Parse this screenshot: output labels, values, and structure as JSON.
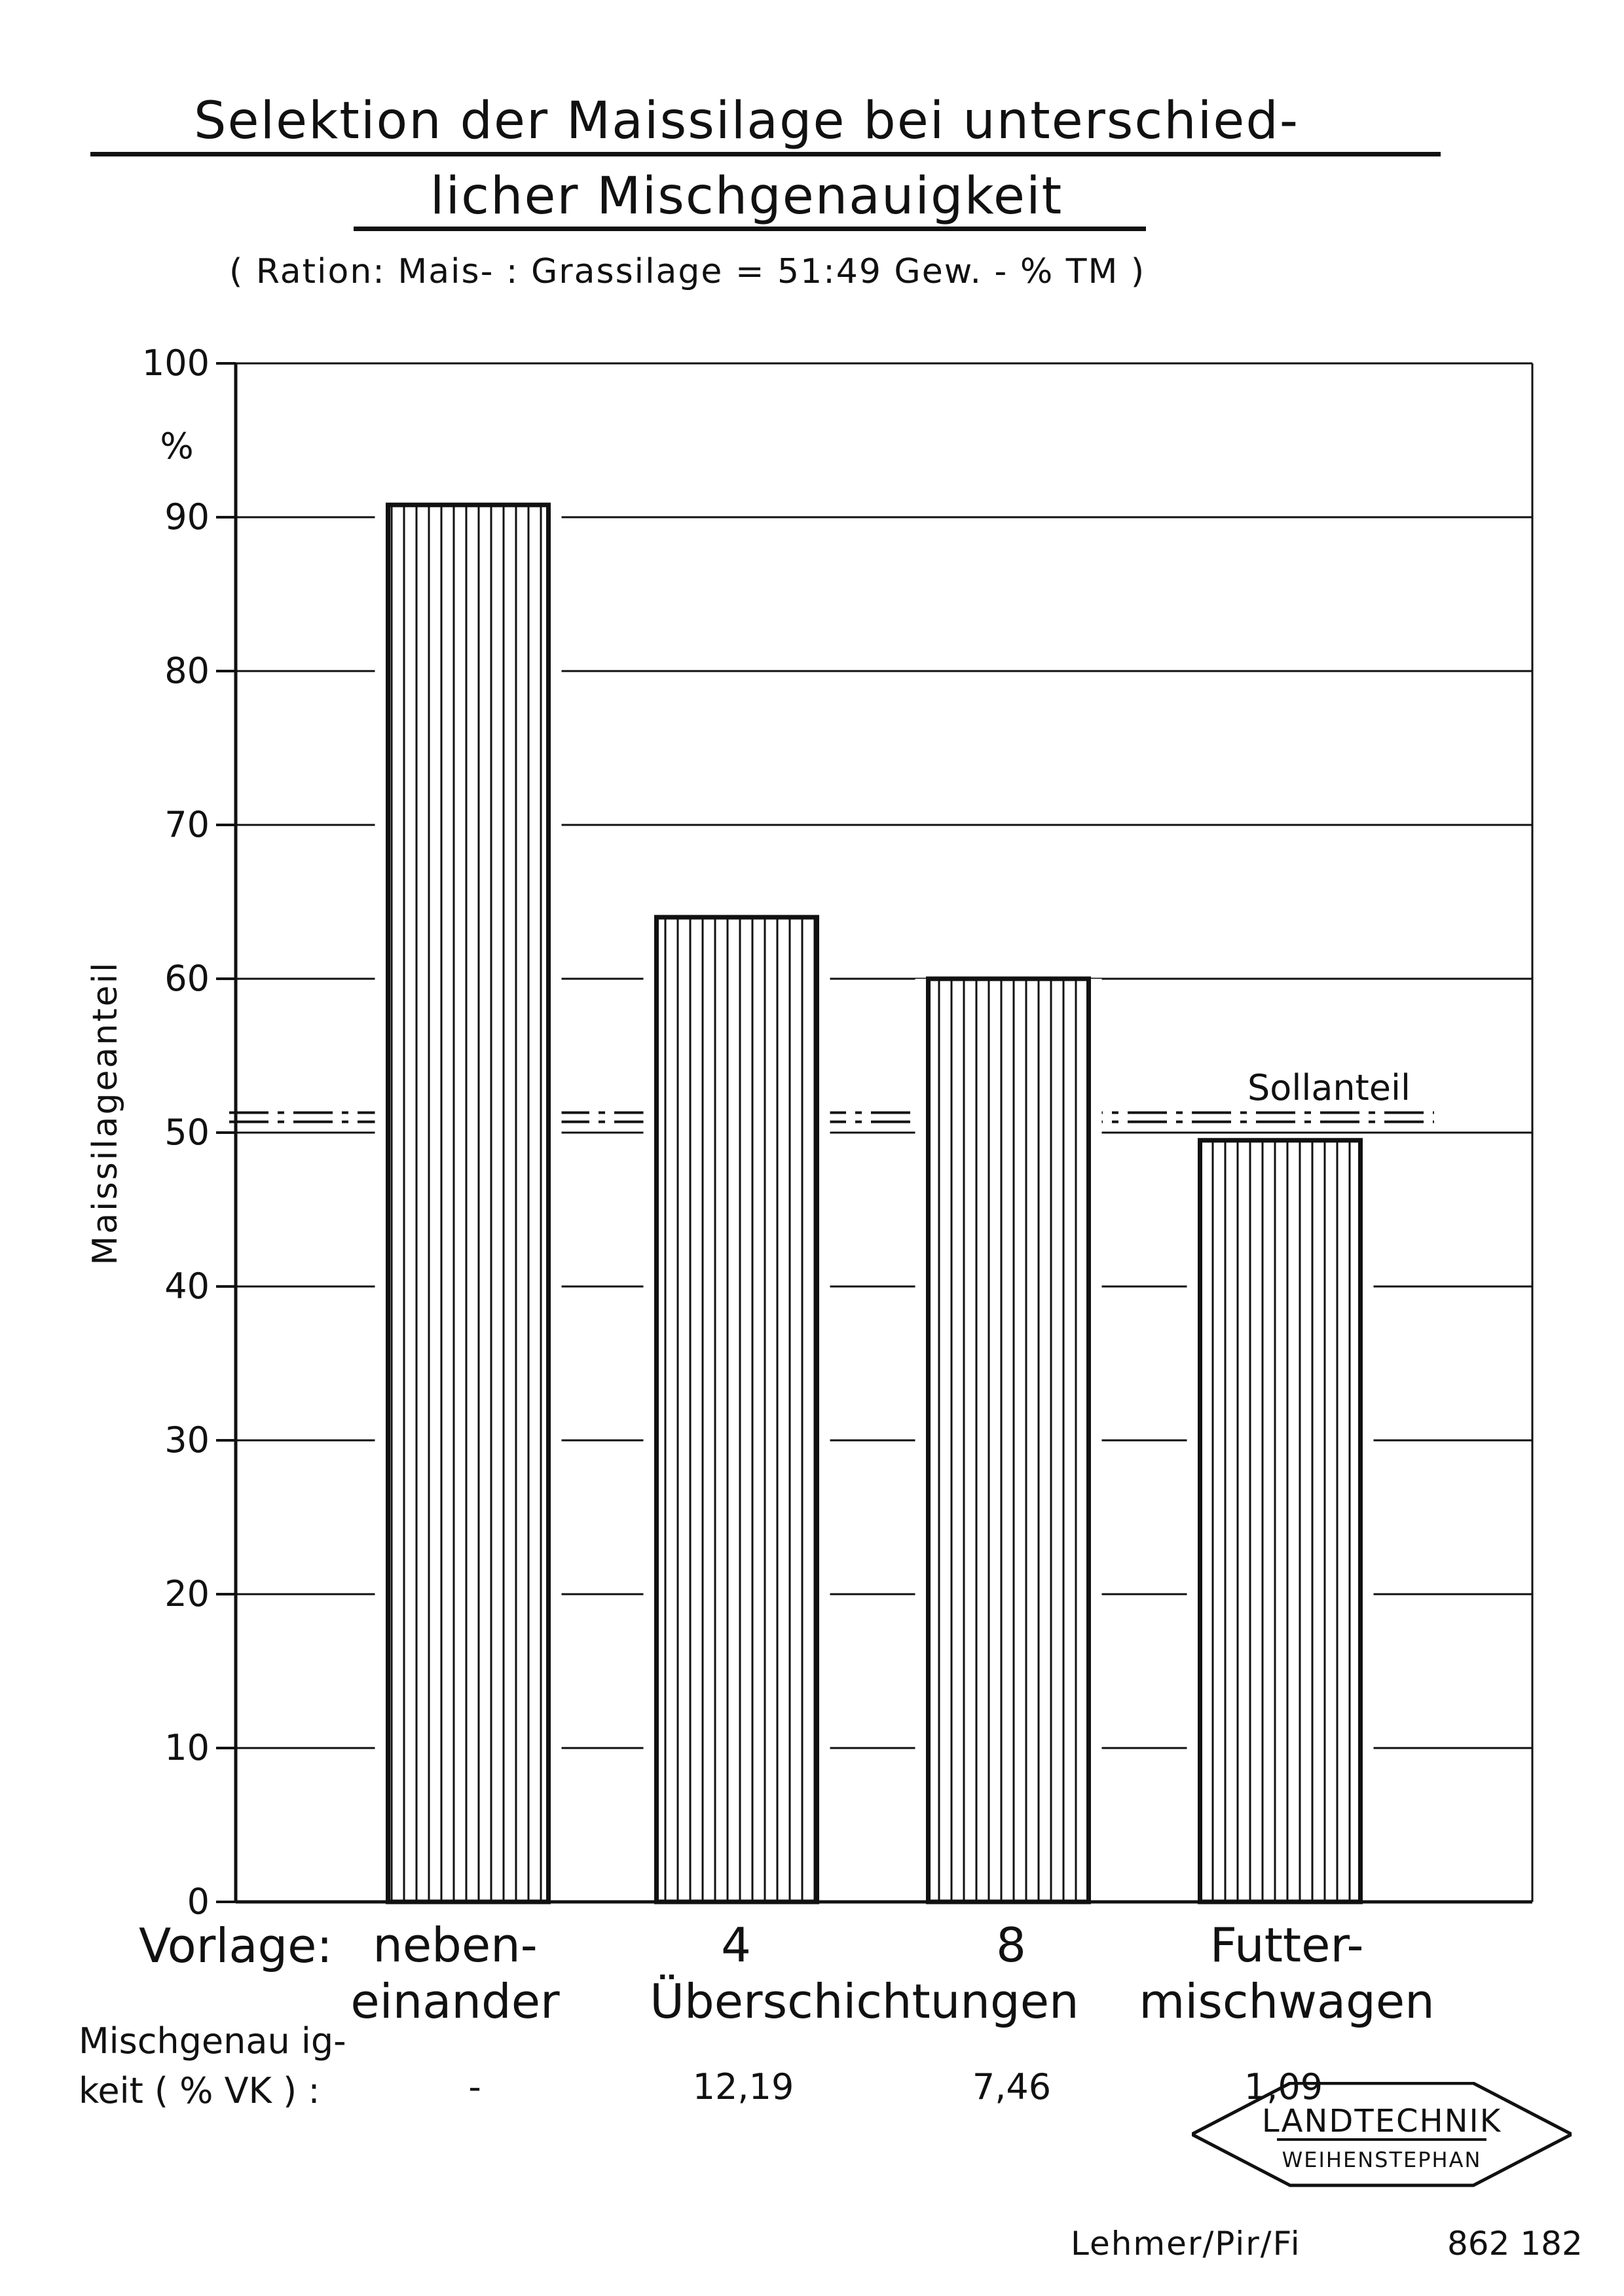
{
  "header": {
    "title_line1": "Selektion der Maissilage bei unterschied-",
    "title_line2": "licher Mischgenauigkeit",
    "subtitle": "( Ration: Mais- : Grassilage = 51:49 Gew. - % TM )"
  },
  "chart_data": {
    "type": "bar",
    "ylabel": "Maissilageanteil",
    "yunit": "%",
    "ylim": [
      0,
      100
    ],
    "yticks": [
      0,
      10,
      20,
      30,
      40,
      50,
      60,
      70,
      80,
      90,
      100
    ],
    "grid": true,
    "categories": [
      "neben-\neinander",
      "4\nÜberschichtungen",
      "8\nÜberschichtungen",
      "Futter-\nmischwagen"
    ],
    "values": [
      90.8,
      64,
      60,
      49.5
    ],
    "bar_pattern": "vertical-hatch",
    "reference_line": {
      "value": 51,
      "label": "Sollanteil",
      "style": "dash-dot"
    }
  },
  "x_axis": {
    "row_label": "Vorlage:",
    "cat1": "neben-\neinander",
    "cat2": "4",
    "cat3": "8",
    "cat23_shared": "Überschichtungen",
    "cat4": "Futter-\nmischwagen"
  },
  "mischgenauigkeit": {
    "label_line1": "Mischgenau ig-",
    "label_line2": "keit ( % VK )  :",
    "values": [
      "-",
      "12,19",
      "7,46",
      "1,09"
    ]
  },
  "footer": {
    "logo_line1": "LANDTECHNIK",
    "logo_line2": "WEIHENSTEPHAN",
    "credit": "Lehmer/Pir/Fi",
    "docnum": "862 182"
  }
}
